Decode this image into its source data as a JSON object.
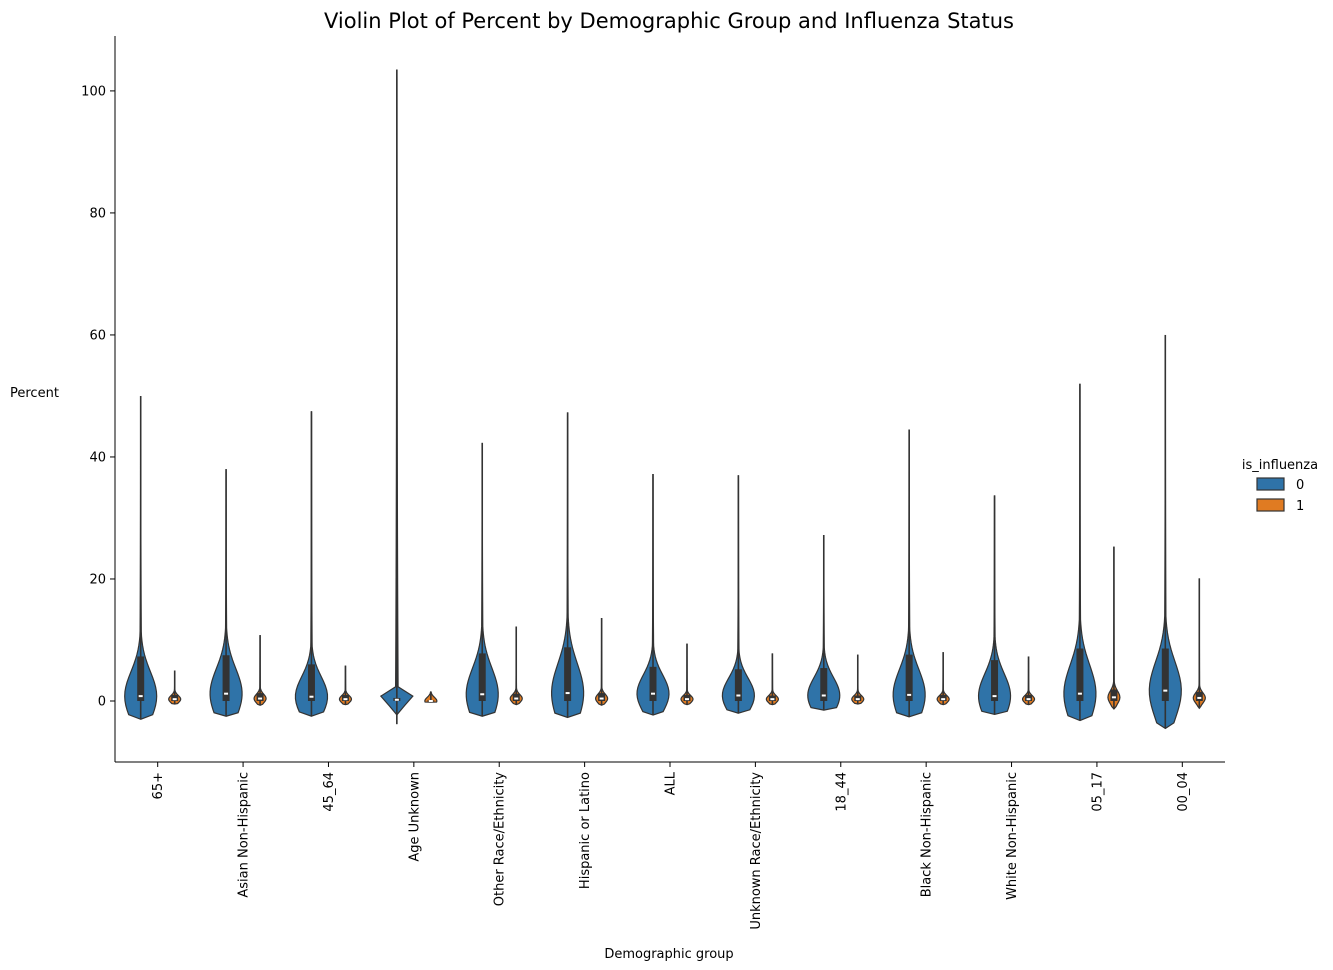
{
  "chart_data": {
    "type": "violin",
    "title": "Violin Plot of Percent by Demographic Group and Influenza Status",
    "xlabel": "Demographic group",
    "ylabel": "Percent",
    "ylim": [
      -10,
      109
    ],
    "yticks": [
      0,
      20,
      40,
      60,
      80,
      100
    ],
    "legend": {
      "title": "is_influenza",
      "placement": "right",
      "entries": [
        {
          "label": "0",
          "color": "#2f73a8"
        },
        {
          "label": "1",
          "color": "#e07b22"
        }
      ]
    },
    "categories": [
      "65+",
      "Asian Non-Hispanic",
      "45_64",
      "Age Unknown",
      "Other Race/Ethnicity",
      "Hispanic or Latino",
      "ALL",
      "Unknown Race/Ethnicity",
      "18_44",
      "Black Non-Hispanic",
      "White Non-Hispanic",
      "05_17",
      "00_04"
    ],
    "series": [
      {
        "name": "0",
        "color": "#2f73a8",
        "groups": [
          {
            "min": -3,
            "max": 50,
            "q1": 0,
            "median": 0.8,
            "q3": 7.3
          },
          {
            "min": -2.5,
            "max": 38,
            "q1": 0,
            "median": 1.2,
            "q3": 7.5
          },
          {
            "min": -2.5,
            "max": 47.5,
            "q1": 0,
            "median": 0.7,
            "q3": 6
          },
          {
            "min": -3.8,
            "max": 103.5,
            "q1": 0,
            "median": 0.2,
            "q3": 0.5
          },
          {
            "min": -2.5,
            "max": 42.3,
            "q1": 0,
            "median": 1.1,
            "q3": 7.8
          },
          {
            "min": -2.7,
            "max": 47.3,
            "q1": 0,
            "median": 1.3,
            "q3": 8.8
          },
          {
            "min": -2.3,
            "max": 37.2,
            "q1": 0,
            "median": 1.2,
            "q3": 5.6
          },
          {
            "min": -2,
            "max": 37,
            "q1": 0,
            "median": 0.9,
            "q3": 5.2
          },
          {
            "min": -1.5,
            "max": 27.2,
            "q1": 0,
            "median": 0.9,
            "q3": 5.4
          },
          {
            "min": -2.6,
            "max": 44.5,
            "q1": 0,
            "median": 1,
            "q3": 7.6
          },
          {
            "min": -2.2,
            "max": 33.7,
            "q1": 0,
            "median": 0.8,
            "q3": 6.7
          },
          {
            "min": -3.2,
            "max": 52,
            "q1": 0,
            "median": 1.2,
            "q3": 8.6
          },
          {
            "min": -4.5,
            "max": 60,
            "q1": 0,
            "median": 1.7,
            "q3": 8.6
          }
        ]
      },
      {
        "name": "1",
        "color": "#e07b22",
        "groups": [
          {
            "min": -0.5,
            "max": 5,
            "q1": 0,
            "median": 0.3,
            "q3": 1
          },
          {
            "min": -0.7,
            "max": 10.8,
            "q1": 0,
            "median": 0.4,
            "q3": 1.3
          },
          {
            "min": -0.6,
            "max": 5.8,
            "q1": 0,
            "median": 0.3,
            "q3": 1
          },
          {
            "min": -0.2,
            "max": 1.5,
            "q1": 0,
            "median": 0,
            "q3": 0.1
          },
          {
            "min": -0.6,
            "max": 12.2,
            "q1": 0,
            "median": 0.4,
            "q3": 1.2
          },
          {
            "min": -0.7,
            "max": 13.6,
            "q1": 0,
            "median": 0.4,
            "q3": 1.3
          },
          {
            "min": -0.6,
            "max": 9.4,
            "q1": 0,
            "median": 0.3,
            "q3": 1
          },
          {
            "min": -0.6,
            "max": 7.8,
            "q1": 0,
            "median": 0.3,
            "q3": 0.9
          },
          {
            "min": -0.5,
            "max": 7.6,
            "q1": 0,
            "median": 0.3,
            "q3": 0.9
          },
          {
            "min": -0.6,
            "max": 8,
            "q1": 0,
            "median": 0.3,
            "q3": 1
          },
          {
            "min": -0.6,
            "max": 7.3,
            "q1": 0,
            "median": 0.3,
            "q3": 1
          },
          {
            "min": -1.3,
            "max": 25.3,
            "q1": 0,
            "median": 0.6,
            "q3": 1.9
          },
          {
            "min": -1.2,
            "max": 20.1,
            "q1": 0,
            "median": 0.5,
            "q3": 1.5
          }
        ]
      }
    ]
  }
}
